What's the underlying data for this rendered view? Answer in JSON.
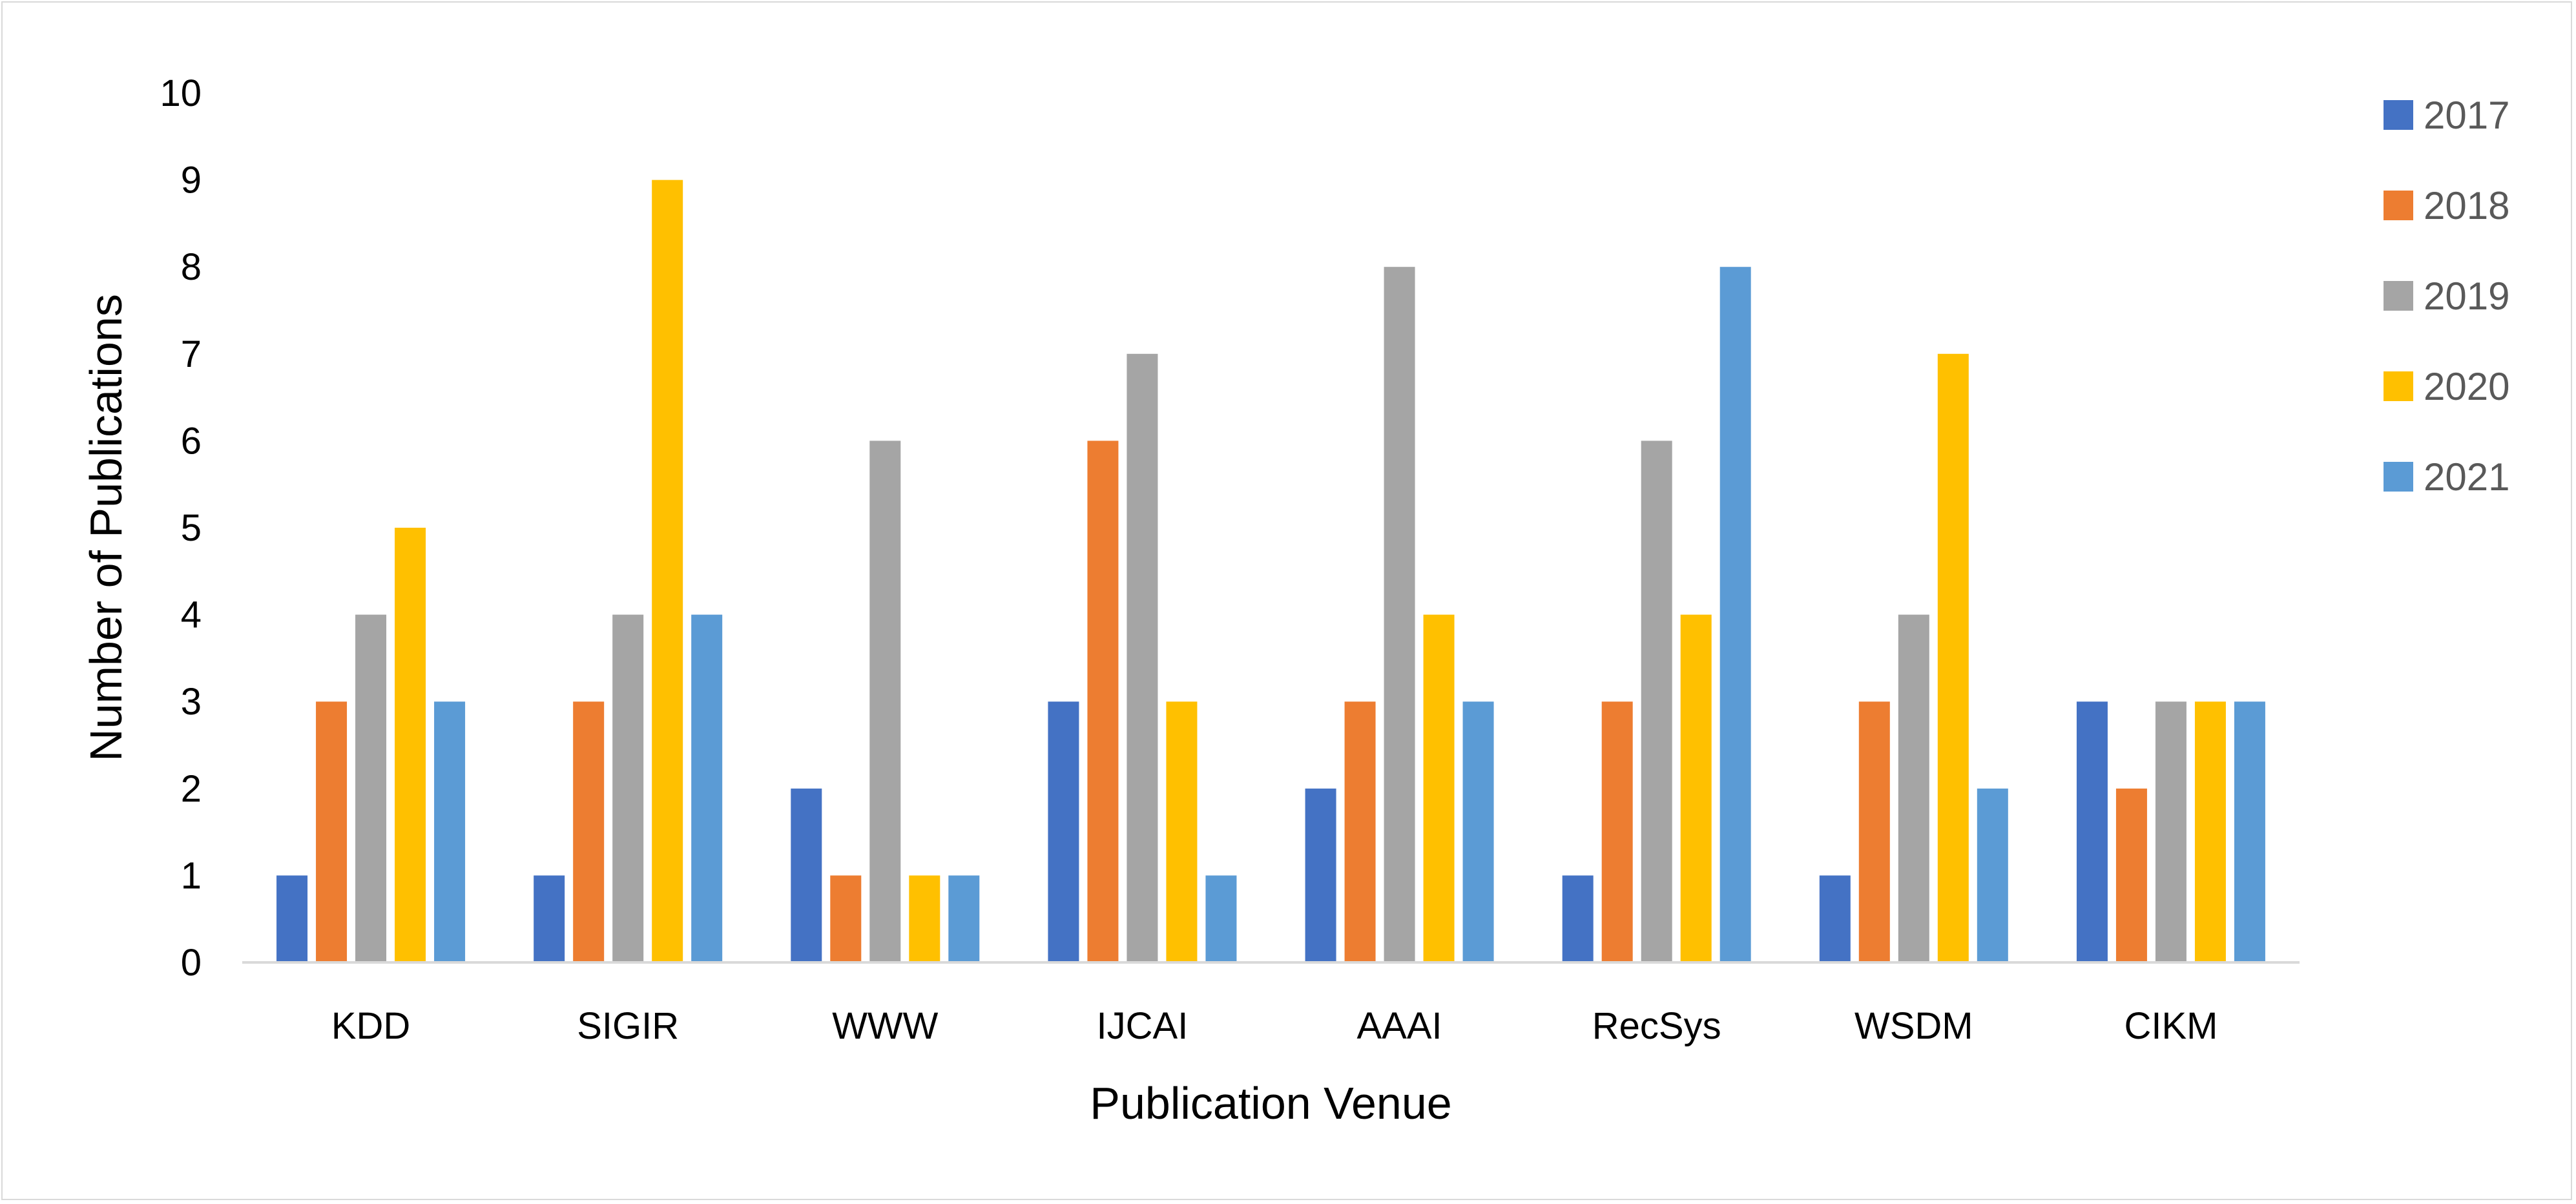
{
  "chart_data": {
    "type": "bar",
    "title": "",
    "xlabel": "Publication Venue",
    "ylabel": "Number of Publications",
    "ylim": [
      0,
      10
    ],
    "yticks": [
      0,
      1,
      2,
      3,
      4,
      5,
      6,
      7,
      8,
      9,
      10
    ],
    "grid": false,
    "legend_position": "right",
    "categories": [
      "KDD",
      "SIGIR",
      "WWW",
      "IJCAI",
      "AAAI",
      "RecSys",
      "WSDM",
      "CIKM"
    ],
    "series": [
      {
        "name": "2017",
        "color": "#4472C4",
        "values": [
          1,
          1,
          2,
          3,
          2,
          1,
          1,
          3
        ]
      },
      {
        "name": "2018",
        "color": "#ED7D31",
        "values": [
          3,
          3,
          1,
          6,
          3,
          3,
          3,
          2
        ]
      },
      {
        "name": "2019",
        "color": "#A5A5A5",
        "values": [
          4,
          4,
          6,
          7,
          8,
          6,
          4,
          3
        ]
      },
      {
        "name": "2020",
        "color": "#FFC000",
        "values": [
          5,
          9,
          1,
          3,
          4,
          4,
          7,
          3
        ]
      },
      {
        "name": "2021",
        "color": "#5B9BD5",
        "values": [
          3,
          4,
          1,
          1,
          3,
          8,
          2,
          3
        ]
      }
    ]
  }
}
